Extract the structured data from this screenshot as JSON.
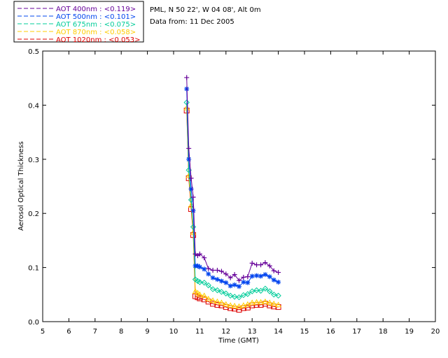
{
  "header": {
    "site": "PML, N 50 22', W 04 08', Alt 0m",
    "date": "Data from: 11 Dec 2005"
  },
  "chart_data": {
    "type": "line",
    "xlabel": "Time (GMT)",
    "ylabel": "Aerosol Optical Thickness",
    "xlim": [
      5,
      20
    ],
    "ylim": [
      0,
      0.5
    ],
    "xticks": [
      5,
      6,
      7,
      8,
      9,
      10,
      11,
      12,
      13,
      14,
      15,
      16,
      17,
      18,
      19,
      20
    ],
    "yticks": [
      0.0,
      0.1,
      0.2,
      0.3,
      0.4,
      0.5
    ],
    "ytick_labels": [
      "0.0",
      "0.1",
      "0.2",
      "0.3",
      "0.4",
      "0.5"
    ],
    "legend_position": "top-left",
    "x": [
      10.5,
      10.58,
      10.67,
      10.75,
      10.83,
      10.92,
      11.0,
      11.17,
      11.33,
      11.5,
      11.67,
      11.83,
      12.0,
      12.17,
      12.33,
      12.5,
      12.67,
      12.83,
      13.0,
      13.17,
      13.33,
      13.5,
      13.67,
      13.83,
      14.0
    ],
    "series": [
      {
        "name": "AOT  400nm : <0.119>",
        "color": "#660099",
        "marker": "plus",
        "values": [
          0.451,
          0.32,
          0.265,
          0.23,
          0.125,
          0.122,
          0.125,
          0.118,
          0.098,
          0.095,
          0.095,
          0.093,
          0.088,
          0.081,
          0.087,
          0.076,
          0.082,
          0.083,
          0.108,
          0.105,
          0.105,
          0.109,
          0.103,
          0.094,
          0.091
        ]
      },
      {
        "name": "AOT  500nm : <0.101>",
        "color": "#0044ee",
        "marker": "asterisk",
        "values": [
          0.43,
          0.3,
          0.245,
          0.205,
          0.103,
          0.103,
          0.101,
          0.097,
          0.088,
          0.081,
          0.078,
          0.075,
          0.072,
          0.066,
          0.068,
          0.065,
          0.073,
          0.072,
          0.084,
          0.085,
          0.084,
          0.087,
          0.083,
          0.077,
          0.073
        ]
      },
      {
        "name": "AOT  675nm : <0.075>",
        "color": "#00cc99",
        "marker": "diamond",
        "values": [
          0.405,
          0.28,
          0.225,
          0.175,
          0.078,
          0.075,
          0.073,
          0.072,
          0.067,
          0.06,
          0.058,
          0.055,
          0.052,
          0.048,
          0.046,
          0.045,
          0.049,
          0.051,
          0.056,
          0.058,
          0.057,
          0.061,
          0.056,
          0.05,
          0.048
        ]
      },
      {
        "name": "AOT  870nm : <0.058>",
        "color": "#ffcc00",
        "marker": "triangle",
        "values": [
          0.395,
          0.27,
          0.215,
          0.165,
          0.056,
          0.053,
          0.05,
          0.048,
          0.042,
          0.039,
          0.037,
          0.035,
          0.032,
          0.03,
          0.029,
          0.028,
          0.03,
          0.032,
          0.035,
          0.036,
          0.036,
          0.037,
          0.035,
          0.033,
          0.031
        ]
      },
      {
        "name": "AOT 1020nm : <0.053>",
        "color": "#dd0000",
        "marker": "square",
        "values": [
          0.39,
          0.265,
          0.208,
          0.16,
          0.047,
          0.045,
          0.043,
          0.041,
          0.037,
          0.033,
          0.031,
          0.03,
          0.027,
          0.025,
          0.024,
          0.022,
          0.025,
          0.026,
          0.03,
          0.031,
          0.031,
          0.033,
          0.03,
          0.028,
          0.027
        ]
      }
    ]
  }
}
